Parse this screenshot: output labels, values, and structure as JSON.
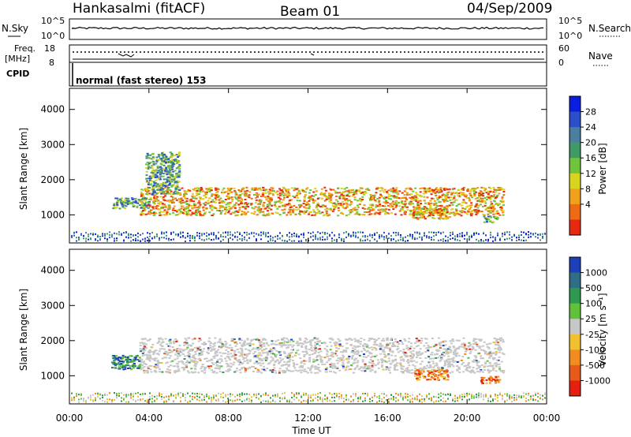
{
  "header": {
    "site": "Hankasalmi (fitACF)",
    "beam": "Beam 01",
    "date": "04/Sep/2009"
  },
  "noise_panel": {
    "left_label": "N.Sky",
    "right_label": "N.Search",
    "left_ticks": [
      "10^5",
      "10^0"
    ],
    "right_ticks": [
      "10^5",
      "10^0"
    ]
  },
  "freq_panel": {
    "left_label_1": "Freq.",
    "left_label_2": "[MHz]",
    "right_label": "Nave",
    "left_ticks": [
      "18",
      "8"
    ],
    "right_ticks": [
      "60",
      "0"
    ]
  },
  "cpid": {
    "label": "CPID",
    "value": "normal (fast stereo) 153"
  },
  "chart_data": [
    {
      "type": "heatmap",
      "name": "power",
      "ylabel": "Slant Range [km]",
      "yticks": [
        "1000",
        "2000",
        "3000",
        "4000"
      ],
      "ylim": [
        200,
        4600
      ],
      "colorbar_label": "Power [dB]",
      "colorbar_ticks": [
        "28",
        "24",
        "20",
        "16",
        "12",
        "8",
        "4"
      ],
      "colorbar_colors": [
        "#0a1ee0",
        "#2a4fc8",
        "#4a7fa0",
        "#3f9a66",
        "#6fc43c",
        "#d9d51e",
        "#f0a01a",
        "#ee6a14",
        "#e52a10"
      ],
      "features": [
        {
          "t_start": 3.5,
          "t_end": 21.8,
          "range_start": 1000,
          "range_end": 1800,
          "level": "high"
        },
        {
          "t_start": 2.1,
          "t_end": 4.0,
          "range_start": 1200,
          "range_end": 1500,
          "level": "mid"
        },
        {
          "t_start": 3.8,
          "t_end": 5.5,
          "range_start": 1600,
          "range_end": 2800,
          "level": "mid"
        },
        {
          "t_start": 17.2,
          "t_end": 19.1,
          "range_start": 900,
          "range_end": 1200,
          "level": "high"
        },
        {
          "t_start": 20.8,
          "t_end": 21.5,
          "range_start": 800,
          "range_end": 1000,
          "level": "mid"
        }
      ]
    },
    {
      "type": "heatmap",
      "name": "velocity",
      "ylabel": "Slant Range [km]",
      "yticks": [
        "1000",
        "2000",
        "3000",
        "4000"
      ],
      "ylim": [
        200,
        4600
      ],
      "colorbar_label": "Velocity [m s⁻¹]",
      "colorbar_ticks": [
        "1000",
        "500",
        "100",
        "25",
        "-25",
        "-100",
        "-500",
        "-1000"
      ],
      "colorbar_colors": [
        "#1d3fb8",
        "#2f6e86",
        "#2f9a4f",
        "#5fc23a",
        "#c7c7c7",
        "#f0c030",
        "#f08c20",
        "#e85a18",
        "#e52010"
      ],
      "features": [
        {
          "t_start": 3.5,
          "t_end": 21.8,
          "range_start": 1100,
          "range_end": 2100,
          "level": "zero"
        },
        {
          "t_start": 2.1,
          "t_end": 3.5,
          "range_start": 1200,
          "range_end": 1600,
          "level": "positive"
        },
        {
          "t_start": 17.3,
          "t_end": 19.0,
          "range_start": 900,
          "range_end": 1200,
          "level": "negative"
        },
        {
          "t_start": 20.6,
          "t_end": 21.6,
          "range_start": 800,
          "range_end": 1000,
          "level": "negative"
        }
      ]
    }
  ],
  "time_axis": {
    "label": "Time UT",
    "ticks": [
      "00:00",
      "04:00",
      "08:00",
      "12:00",
      "16:00",
      "20:00",
      "00:00"
    ]
  }
}
